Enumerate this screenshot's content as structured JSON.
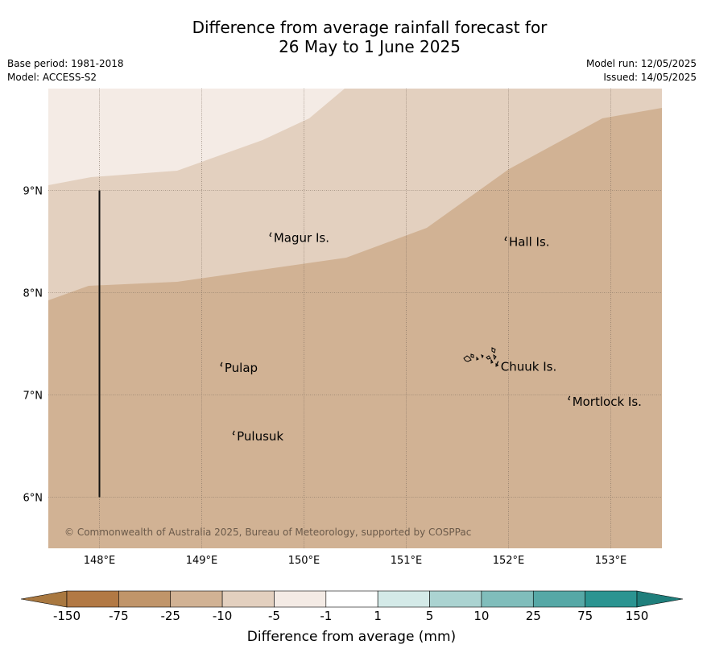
{
  "title_line1": "Difference from average rainfall forecast for",
  "title_line2": "26 May to 1 June 2025",
  "base_period": "Base period: 1981-2018",
  "model": "Model: ACCESS-S2",
  "model_run": "Model run: 12/05/2025",
  "issued": "Issued: 14/05/2025",
  "copyright": "© Commonwealth of Australia 2025, Bureau of Meteorology, supported by COSPPac",
  "map_extent": {
    "lon": [
      147.5,
      153.5
    ],
    "lat": [
      5.5,
      10.0
    ]
  },
  "lon_ticks": [
    {
      "value": 148,
      "label": "148°E"
    },
    {
      "value": 149,
      "label": "149°E"
    },
    {
      "value": 150,
      "label": "150°E"
    },
    {
      "value": 151,
      "label": "151°E"
    },
    {
      "value": 152,
      "label": "152°E"
    },
    {
      "value": 153,
      "label": "153°E"
    }
  ],
  "lat_ticks": [
    {
      "value": 9,
      "label": "9°N"
    },
    {
      "value": 8,
      "label": "8°N"
    },
    {
      "value": 7,
      "label": "7°N"
    },
    {
      "value": 6,
      "label": "6°N"
    }
  ],
  "places": [
    {
      "name": "Magur Is.",
      "lon": 149.68,
      "lat": 8.55
    },
    {
      "name": "Hall Is.",
      "lon": 151.98,
      "lat": 8.51
    },
    {
      "name": "Pulap",
      "lon": 149.2,
      "lat": 7.28
    },
    {
      "name": "Chuuk Is.",
      "lon": 151.9,
      "lat": 7.29
    },
    {
      "name": "Mortlock Is.",
      "lon": 152.6,
      "lat": 6.95
    },
    {
      "name": "Pulusuk",
      "lon": 149.32,
      "lat": 6.61
    }
  ],
  "boundary_line": {
    "lon": 148.0,
    "lat": [
      6.0,
      9.0
    ]
  },
  "colorbar": {
    "title": "Difference from average (mm)",
    "labels": [
      "-150",
      "-75",
      "-25",
      "-10",
      "-5",
      "-1",
      "1",
      "5",
      "10",
      "25",
      "75",
      "150"
    ],
    "colors": [
      "#a97840",
      "#b27944",
      "#c0956a",
      "#d1b294",
      "#e3d0bf",
      "#f4ebe5",
      "#ffffff",
      "#d4eae8",
      "#abd3d1",
      "#80bdbb",
      "#56a8a6",
      "#2b9491",
      "#1f7f7c"
    ]
  },
  "regions": [
    {
      "range": "-5 to -1",
      "color": "#f4ebe5"
    },
    {
      "range": "-10 to -5",
      "color": "#e3d0bf"
    },
    {
      "range": "-25 to -10",
      "color": "#d1b294"
    }
  ]
}
